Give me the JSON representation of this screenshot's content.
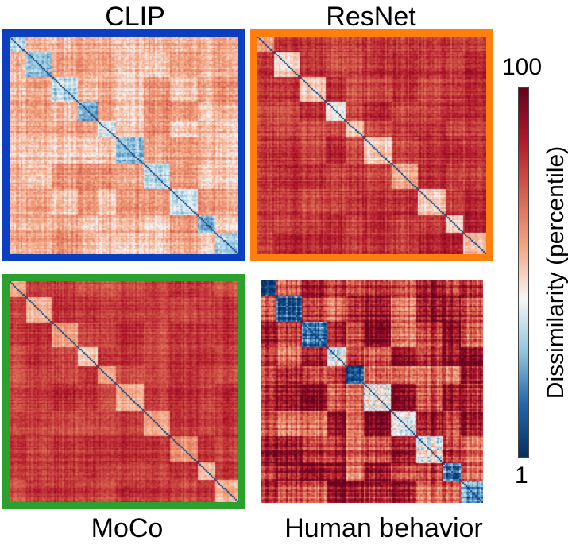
{
  "chart_data": {
    "type": "heatmap",
    "panels": [
      {
        "key": "clip",
        "title": "CLIP",
        "frame_color": "#0c3fbf",
        "overall_dissimilarity_percentile": 45
      },
      {
        "key": "resnet",
        "title": "ResNet",
        "frame_color": "#ff7f0e",
        "overall_dissimilarity_percentile": 78
      },
      {
        "key": "moco",
        "title": "MoCo",
        "frame_color": "#2ca02c",
        "overall_dissimilarity_percentile": 78
      },
      {
        "key": "human",
        "title": "Human behavior",
        "frame_color": "",
        "overall_dissimilarity_percentile": 65
      }
    ],
    "colorbar": {
      "label": "Dissimilarity (percentile)",
      "min_label": "1",
      "max_label": "100",
      "range": [
        1,
        100
      ],
      "colormap": [
        "#053061",
        "#2166ac",
        "#92c5de",
        "#f7f7f7",
        "#f4a582",
        "#d6604d",
        "#b2182b",
        "#67001f"
      ]
    }
  }
}
